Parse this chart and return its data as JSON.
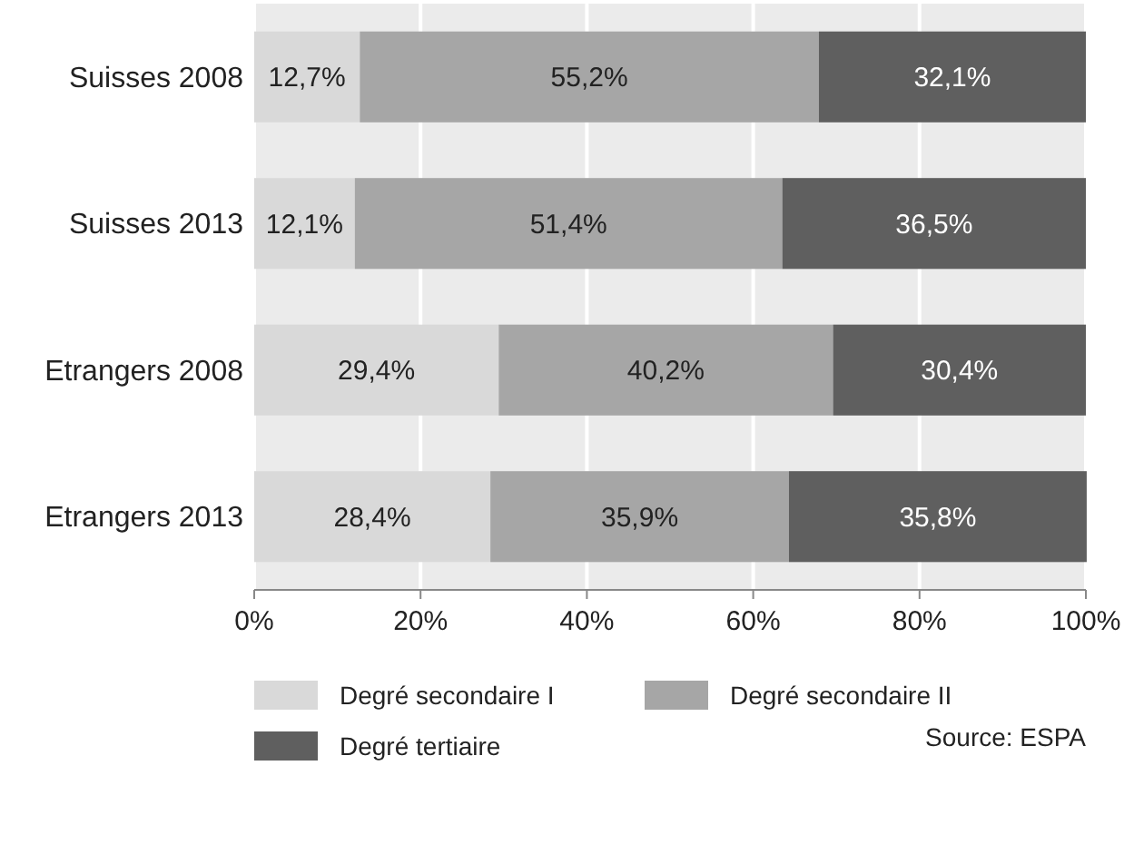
{
  "chart_data": {
    "type": "bar",
    "orientation": "horizontal",
    "stacked": true,
    "categories": [
      "Suisses 2008",
      "Suisses 2013",
      "Etrangers 2008",
      "Etrangers 2013"
    ],
    "series": [
      {
        "name": "Degré secondaire I",
        "color": "#d9d9d9",
        "values": [
          12.7,
          12.1,
          29.4,
          28.4
        ],
        "value_labels": [
          "12,7%",
          "12,1%",
          "29,4%",
          "28,4%"
        ]
      },
      {
        "name": "Degré secondaire II",
        "color": "#a6a6a6",
        "values": [
          55.2,
          51.4,
          40.2,
          35.9
        ],
        "value_labels": [
          "55,2%",
          "51,4%",
          "40,2%",
          "35,9%"
        ]
      },
      {
        "name": "Degré tertiaire",
        "color": "#5f5f5f",
        "values": [
          32.1,
          36.5,
          30.4,
          35.8
        ],
        "value_labels": [
          "32,1%",
          "36,5%",
          "30,4%",
          "35,8%"
        ]
      }
    ],
    "xlim": [
      0,
      100
    ],
    "xticks": [
      {
        "value": 0,
        "label": "0%"
      },
      {
        "value": 20,
        "label": "20%"
      },
      {
        "value": 40,
        "label": "40%"
      },
      {
        "value": 60,
        "label": "60%"
      },
      {
        "value": 80,
        "label": "80%"
      },
      {
        "value": 100,
        "label": "100%"
      }
    ],
    "grid": "x",
    "legend": "bottom",
    "annotations": [
      "Source: ESPA"
    ]
  }
}
